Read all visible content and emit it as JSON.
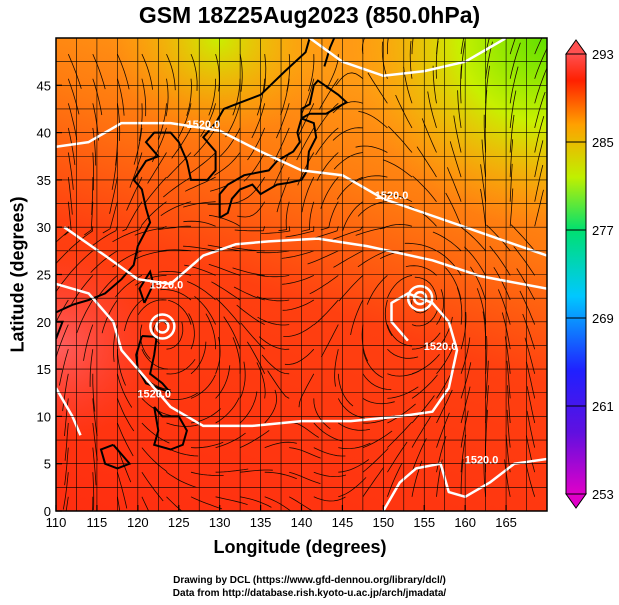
{
  "title": "GSM 18Z25Aug2023 (850.0hPa)",
  "chart_data": {
    "type": "heatmap",
    "title": "GSM 18Z25Aug2023 (850.0hPa)",
    "xlabel": "Longitude (degrees)",
    "ylabel": "Latitude  (degrees)",
    "xlim": [
      110,
      170
    ],
    "ylim": [
      0,
      50
    ],
    "x_ticks": [
      110,
      115,
      120,
      125,
      130,
      135,
      140,
      145,
      150,
      155,
      160,
      165
    ],
    "y_ticks": [
      0,
      5,
      10,
      15,
      20,
      25,
      30,
      35,
      40,
      45
    ],
    "grid": true,
    "colorbar": {
      "position": "right",
      "min": 253,
      "max": 293,
      "ticks": [
        253,
        261,
        269,
        277,
        285,
        293
      ],
      "colors": [
        "#e000c8",
        "#2020ff",
        "#00c8ff",
        "#00e070",
        "#c0f000",
        "#ffa000",
        "#ff2000",
        "#ff5050"
      ]
    },
    "contour_labels": [
      {
        "text": "1520.0",
        "lon": 128,
        "lat": 40.5
      },
      {
        "text": "1520.0",
        "lon": 151,
        "lat": 33
      },
      {
        "text": "1520.0",
        "lon": 123.5,
        "lat": 23.5
      },
      {
        "text": "1520.0",
        "lon": 122,
        "lat": 12
      },
      {
        "text": "1520.0",
        "lon": 157,
        "lat": 17
      },
      {
        "text": "1520.0",
        "lon": 162,
        "lat": 5
      }
    ],
    "vortices": [
      {
        "lon": 123,
        "lat": 19.5
      },
      {
        "lon": 154.5,
        "lat": 22.5
      }
    ]
  },
  "credits": {
    "line1": "Drawing by DCL (https://www.gfd-dennou.org/library/dcl/)",
    "line2": "Data from http://database.rish.kyoto-u.ac.jp/arch/jmadata/"
  }
}
